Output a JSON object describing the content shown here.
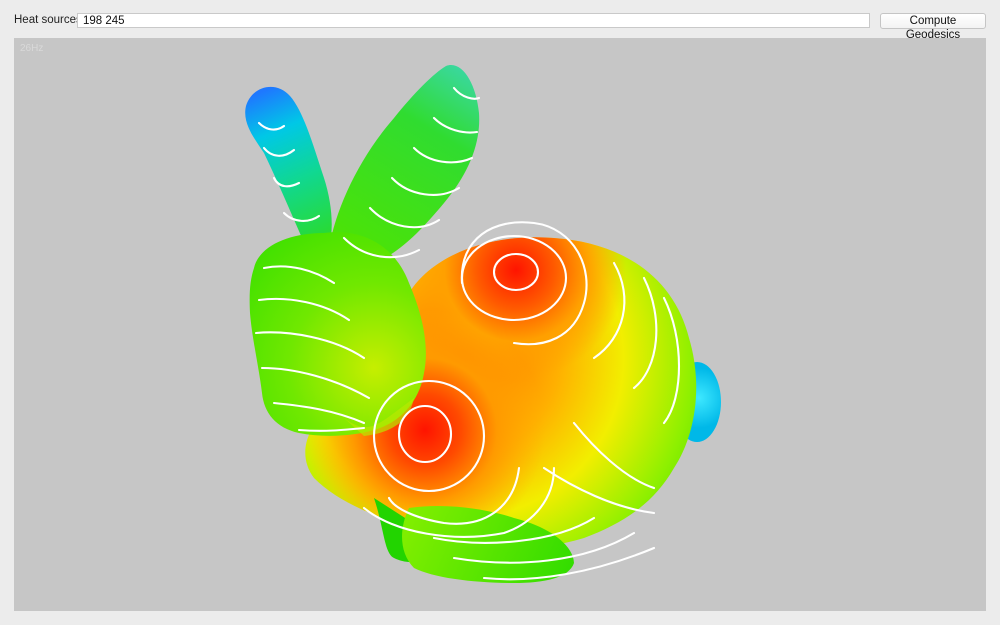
{
  "toolbar": {
    "heat_sources_label": "Heat sources:",
    "heat_sources_value": "198 245",
    "compute_button_label": "Compute Geodesics"
  },
  "viewport": {
    "fps_text": "26Hz",
    "model": "bunny mesh",
    "colormap": [
      "#ff1a00",
      "#ff7a00",
      "#ffe800",
      "#8cf000",
      "#2ddc00",
      "#00c8e6",
      "#1e78ff"
    ],
    "isoline_color": "#ffffff",
    "background_color": "#c6c6c6",
    "heat_source_count": 2
  }
}
